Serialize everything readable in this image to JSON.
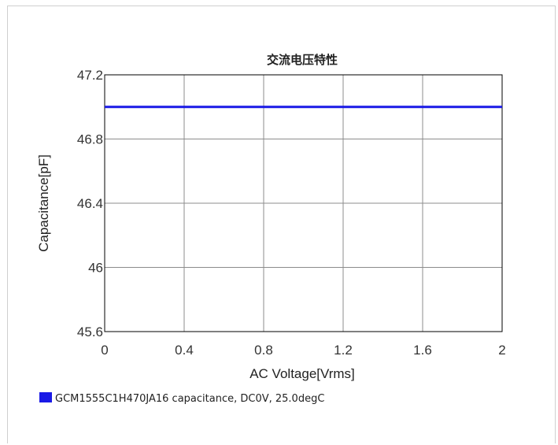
{
  "chart_data": {
    "type": "line",
    "title": "交流电压特性",
    "xlabel": "AC Voltage[Vrms]",
    "ylabel": "Capacitance[pF]",
    "xlim": [
      0,
      2
    ],
    "ylim": [
      45.6,
      47.2
    ],
    "x_ticks": [
      "0",
      "0.4",
      "0.8",
      "1.2",
      "1.6",
      "2"
    ],
    "y_ticks": [
      "47.2",
      "46.8",
      "46.4",
      "46",
      "45.6"
    ],
    "grid": true,
    "legend_position": "bottom-left",
    "series": [
      {
        "name": "GCM1555C1H470JA16 capacitance, DC0V, 25.0degC",
        "color": "#1a1ae6",
        "x": [
          0,
          0.4,
          0.8,
          1.2,
          1.6,
          2
        ],
        "y": [
          47.0,
          47.0,
          47.0,
          47.0,
          47.0,
          47.0
        ]
      }
    ]
  }
}
